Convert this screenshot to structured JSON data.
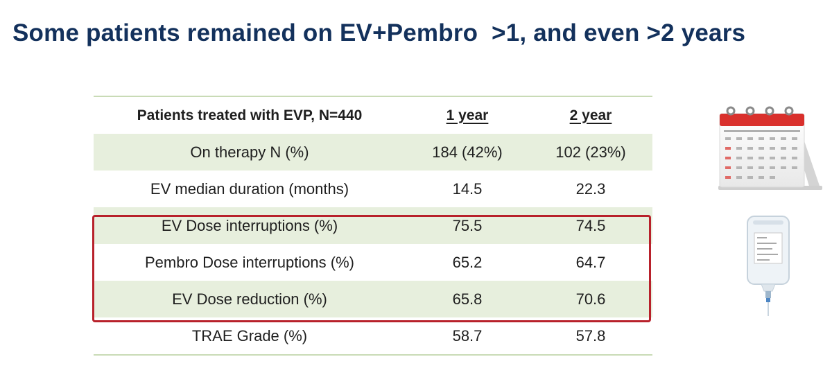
{
  "slide": {
    "title": "Some patients remained on EV+Pembro  >1, and even >2 years"
  },
  "table": {
    "header": {
      "label": "Patients treated with EVP, N=440",
      "col1": "1 year",
      "col2": "2 year"
    },
    "rows": [
      {
        "label": "On therapy N (%)",
        "y1": "184 (42%)",
        "y2": "102 (23%)",
        "shaded": true
      },
      {
        "label": "EV median duration (months)",
        "y1": "14.5",
        "y2": "22.3",
        "shaded": false
      },
      {
        "label": "EV Dose interruptions (%)",
        "y1": "75.5",
        "y2": "74.5",
        "shaded": true
      },
      {
        "label": "Pembro Dose interruptions (%)",
        "y1": "65.2",
        "y2": "64.7",
        "shaded": false
      },
      {
        "label": "EV Dose reduction (%)",
        "y1": "65.8",
        "y2": "70.6",
        "shaded": true
      },
      {
        "label": "TRAE Grade (%)",
        "y1": "58.7",
        "y2": "57.8",
        "shaded": false
      }
    ],
    "highlighted_rows": [
      2,
      3,
      4
    ]
  },
  "icons": {
    "calendar": "calendar-icon",
    "iv_bag": "iv-bag-icon"
  },
  "colors": {
    "title": "#13315c",
    "row_shade": "#e7efdd",
    "rule": "#c9dbb6",
    "highlight": "#b8212b"
  }
}
